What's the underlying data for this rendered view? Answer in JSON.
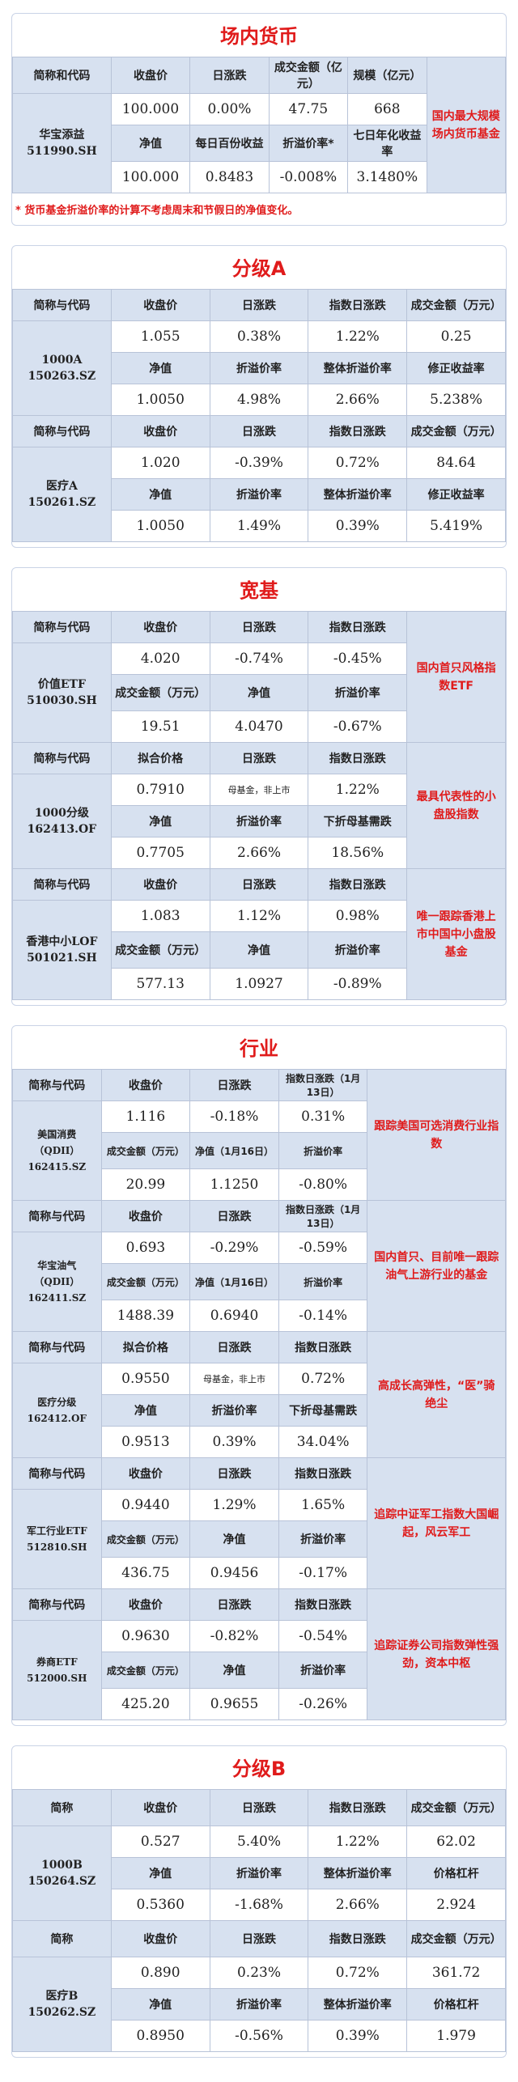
{
  "mm": {
    "title": "场内货币",
    "h": [
      "简称和代码",
      "收盘价",
      "日涨跌",
      "成交金额（亿元）",
      "规模（亿元）"
    ],
    "name": "华宝添益\n511990.SH",
    "r1": [
      "100.000",
      "0.00%",
      "47.75",
      "668"
    ],
    "h2": [
      "净值",
      "每日百份收益",
      "折溢价率*",
      "七日年化收益率"
    ],
    "r2": [
      "100.000",
      "0.8483",
      "-0.008%",
      "3.1480%"
    ],
    "note": "国内最大规模场内货币基金",
    "footnote": "* 货币基金折溢价率的计算不考虑周末和节假日的净值变化。"
  },
  "fa": {
    "title": "分级A",
    "h1": [
      "简称与代码",
      "收盘价",
      "日涨跌",
      "指数日涨跌",
      "成交金额（万元）"
    ],
    "h2": [
      "净值",
      "折溢价率",
      "整体折溢价率",
      "修正收益率"
    ],
    "items": [
      {
        "name": "1000A\n150263.SZ",
        "r1": [
          "1.055",
          "0.38%",
          "1.22%",
          "0.25"
        ],
        "r2": [
          "1.0050",
          "4.98%",
          "2.66%",
          "5.238%"
        ]
      },
      {
        "name": "医疗A\n150261.SZ",
        "r1": [
          "1.020",
          "-0.39%",
          "0.72%",
          "84.64"
        ],
        "r2": [
          "1.0050",
          "1.49%",
          "0.39%",
          "5.419%"
        ]
      }
    ]
  },
  "kj": {
    "title": "宽基",
    "b1": {
      "h1": [
        "简称与代码",
        "收盘价",
        "日涨跌",
        "指数日涨跌"
      ],
      "name": "价值ETF\n510030.SH",
      "r1": [
        "4.020",
        "-0.74%",
        "-0.45%"
      ],
      "h2": [
        "成交金额（万元）",
        "净值",
        "折溢价率"
      ],
      "r2": [
        "19.51",
        "4.0470",
        "-0.67%"
      ],
      "note": "国内首只风格指数ETF"
    },
    "b2": {
      "h1": [
        "简称与代码",
        "拟合价格",
        "日涨跌",
        "指数日涨跌"
      ],
      "name": "1000分级\n162413.OF",
      "r1": [
        "0.7910",
        "母基金，非上市",
        "1.22%"
      ],
      "h2": [
        "净值",
        "折溢价率",
        "下折母基需跌"
      ],
      "r2": [
        "0.7705",
        "2.66%",
        "18.56%"
      ],
      "note": "最具代表性的小盘股指数"
    },
    "b3": {
      "h1": [
        "简称与代码",
        "收盘价",
        "日涨跌",
        "指数日涨跌"
      ],
      "name": "香港中小LOF\n501021.SH",
      "r1": [
        "1.083",
        "1.12%",
        "0.98%"
      ],
      "h2": [
        "成交金额（万元）",
        "净值",
        "折溢价率"
      ],
      "r2": [
        "577.13",
        "1.0927",
        "-0.89%"
      ],
      "note": "唯一跟踪香港上市中国中小盘股基金"
    }
  },
  "hy": {
    "title": "行业",
    "b1": {
      "h1": [
        "简称与代码",
        "收盘价",
        "日涨跌",
        "指数日涨跌（1月13日）"
      ],
      "name": "美国消费\n（QDII）\n162415.SZ",
      "r1": [
        "1.116",
        "-0.18%",
        "0.31%"
      ],
      "h2": [
        "成交金额（万元）",
        "净值（1月16日）",
        "折溢价率"
      ],
      "r2": [
        "20.99",
        "1.1250",
        "-0.80%"
      ],
      "note": "跟踪美国可选消费行业指数"
    },
    "b2": {
      "h1": [
        "简称与代码",
        "收盘价",
        "日涨跌",
        "指数日涨跌（1月13日）"
      ],
      "name": "华宝油气\n（QDII）\n162411.SZ",
      "r1": [
        "0.693",
        "-0.29%",
        "-0.59%"
      ],
      "h2": [
        "成交金额（万元）",
        "净值（1月16日）",
        "折溢价率"
      ],
      "r2": [
        "1488.39",
        "0.6940",
        "-0.14%"
      ],
      "note": "国内首只、目前唯一跟踪油气上游行业的基金"
    },
    "b3": {
      "h1": [
        "简称与代码",
        "拟合价格",
        "日涨跌",
        "指数日涨跌"
      ],
      "name": "医疗分级\n162412.OF",
      "r1": [
        "0.9550",
        "母基金，非上市",
        "0.72%"
      ],
      "h2": [
        "净值",
        "折溢价率",
        "下折母基需跌"
      ],
      "r2": [
        "0.9513",
        "0.39%",
        "34.04%"
      ],
      "note": "高成长高弹性，“医”骑绝尘"
    },
    "b4": {
      "h1": [
        "简称与代码",
        "收盘价",
        "日涨跌",
        "指数日涨跌"
      ],
      "name": "军工行业ETF\n512810.SH",
      "r1": [
        "0.9440",
        "1.29%",
        "1.65%"
      ],
      "h2": [
        "成交金额（万元）",
        "净值",
        "折溢价率"
      ],
      "r2": [
        "436.75",
        "0.9456",
        "-0.17%"
      ],
      "note": "追踪中证军工指数大国崛起，风云军工"
    },
    "b5": {
      "h1": [
        "简称与代码",
        "收盘价",
        "日涨跌",
        "指数日涨跌"
      ],
      "name": "券商ETF\n512000.SH",
      "r1": [
        "0.9630",
        "-0.82%",
        "-0.54%"
      ],
      "h2": [
        "成交金额（万元）",
        "净值",
        "折溢价率"
      ],
      "r2": [
        "425.20",
        "0.9655",
        "-0.26%"
      ],
      "note": "追踪证券公司指数弹性强劲，资本中枢"
    }
  },
  "fb": {
    "title": "分级B",
    "h1": [
      "简称",
      "收盘价",
      "日涨跌",
      "指数日涨跌",
      "成交金额（万元）"
    ],
    "h2": [
      "净值",
      "折溢价率",
      "整体折溢价率",
      "价格杠杆"
    ],
    "items": [
      {
        "name": "1000B\n150264.SZ",
        "r1": [
          "0.527",
          "5.40%",
          "1.22%",
          "62.02"
        ],
        "r2": [
          "0.5360",
          "-1.68%",
          "2.66%",
          "2.924"
        ]
      },
      {
        "name": "医疗B\n150262.SZ",
        "r1": [
          "0.890",
          "0.23%",
          "0.72%",
          "361.72"
        ],
        "r2": [
          "0.8950",
          "-0.56%",
          "0.39%",
          "1.979"
        ]
      }
    ]
  }
}
